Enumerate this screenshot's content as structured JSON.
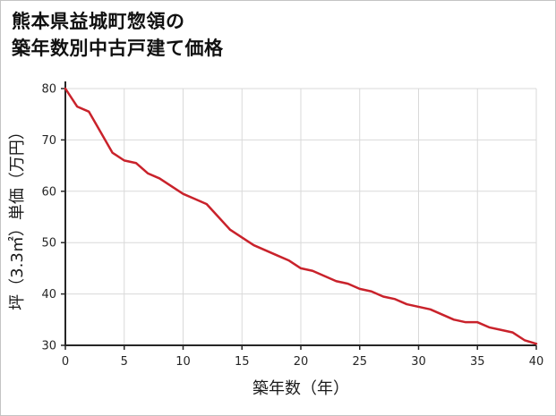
{
  "title": {
    "line1": "熊本県益城町惣領の",
    "line2": "築年数別中古戸建て価格"
  },
  "chart_data": {
    "type": "line",
    "title": "熊本県益城町惣領の築年数別中古戸建て価格",
    "xlabel": "築年数（年）",
    "ylabel": "坪（3.3㎡）単価（万円）",
    "x": [
      0,
      1,
      2,
      3,
      4,
      5,
      6,
      7,
      8,
      9,
      10,
      11,
      12,
      13,
      14,
      15,
      16,
      17,
      18,
      19,
      20,
      21,
      22,
      23,
      24,
      25,
      26,
      27,
      28,
      29,
      30,
      31,
      32,
      33,
      34,
      35,
      36,
      37,
      38,
      39,
      40
    ],
    "values": [
      80,
      76.5,
      75.5,
      71.5,
      67.5,
      66,
      65.5,
      63.5,
      62.5,
      61,
      59.5,
      58.5,
      57.5,
      55,
      52.5,
      51,
      49.5,
      48.5,
      47.5,
      46.5,
      45,
      44.5,
      43.5,
      42.5,
      42,
      41,
      40.5,
      39.5,
      39,
      38,
      37.5,
      37,
      36,
      35,
      34.5,
      34.5,
      33.5,
      33,
      32.5,
      31,
      30.3
    ],
    "xlim": [
      0,
      40
    ],
    "ylim": [
      30,
      80
    ],
    "xticks": [
      0,
      5,
      10,
      15,
      20,
      25,
      30,
      35,
      40
    ],
    "yticks": [
      30,
      40,
      50,
      60,
      70,
      80
    ],
    "grid": true,
    "legend": false,
    "line_color": "#c9222b",
    "axis_color": "#262626",
    "grid_color": "#d9d9d9",
    "background_color": "#ffffff"
  }
}
